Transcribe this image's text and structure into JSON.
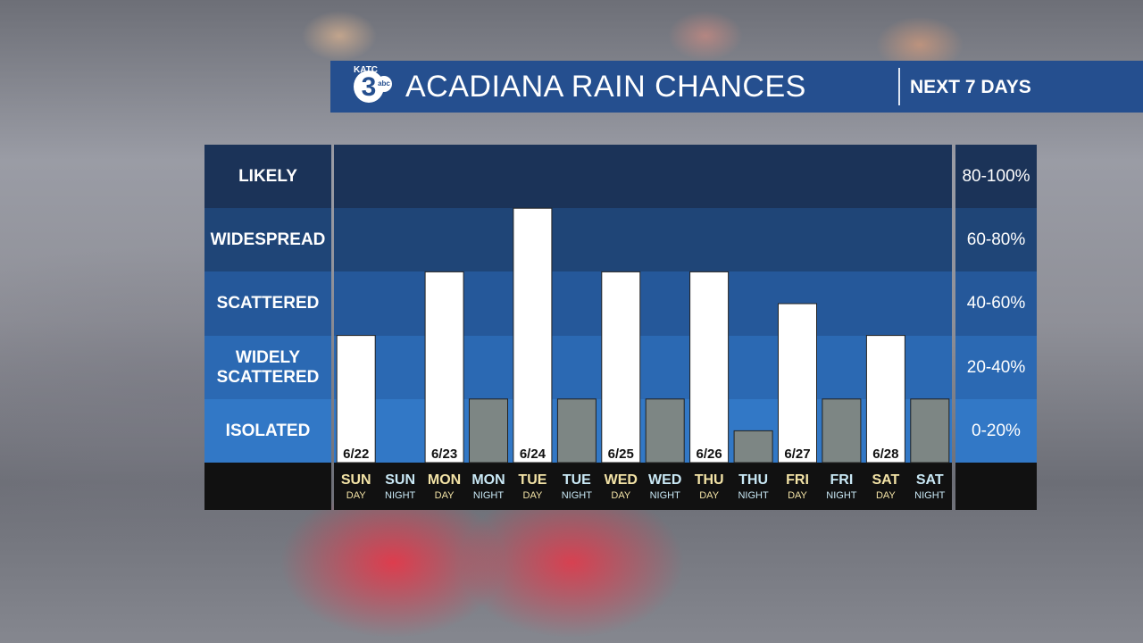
{
  "header": {
    "logo_text": "KATC",
    "logo_number": "3",
    "logo_network": "abc",
    "title": "ACADIANA RAIN CHANCES",
    "subtitle": "NEXT 7 DAYS"
  },
  "bands": [
    {
      "label": "LIKELY",
      "label2": "",
      "range": "80-100%",
      "color": "#1b3358"
    },
    {
      "label": "WIDESPREAD",
      "label2": "",
      "range": "60-80%",
      "color": "#1f4577"
    },
    {
      "label": "SCATTERED",
      "label2": "",
      "range": "40-60%",
      "color": "#25589a"
    },
    {
      "label": "WIDELY",
      "label2": "SCATTERED",
      "range": "20-40%",
      "color": "#2b69b3"
    },
    {
      "label": "ISOLATED",
      "label2": "",
      "range": "0-20%",
      "color": "#3278c6"
    }
  ],
  "chart_data": {
    "type": "bar",
    "ylim": [
      0,
      100
    ],
    "categories": [
      "SUN DAY",
      "SUN NIGHT",
      "MON DAY",
      "MON NIGHT",
      "TUE DAY",
      "TUE NIGHT",
      "WED DAY",
      "WED NIGHT",
      "THU DAY",
      "THU NIGHT",
      "FRI DAY",
      "FRI NIGHT",
      "SAT DAY",
      "SAT NIGHT"
    ],
    "periods": [
      {
        "day": "SUN",
        "part": "DAY",
        "date": "6/22",
        "value": 40,
        "kind": "day"
      },
      {
        "day": "SUN",
        "part": "NIGHT",
        "date": "",
        "value": 0,
        "kind": "night"
      },
      {
        "day": "MON",
        "part": "DAY",
        "date": "6/23",
        "value": 60,
        "kind": "day"
      },
      {
        "day": "MON",
        "part": "NIGHT",
        "date": "",
        "value": 20,
        "kind": "night"
      },
      {
        "day": "TUE",
        "part": "DAY",
        "date": "6/24",
        "value": 80,
        "kind": "day"
      },
      {
        "day": "TUE",
        "part": "NIGHT",
        "date": "",
        "value": 20,
        "kind": "night"
      },
      {
        "day": "WED",
        "part": "DAY",
        "date": "6/25",
        "value": 60,
        "kind": "day"
      },
      {
        "day": "WED",
        "part": "NIGHT",
        "date": "",
        "value": 20,
        "kind": "night"
      },
      {
        "day": "THU",
        "part": "DAY",
        "date": "6/26",
        "value": 60,
        "kind": "day"
      },
      {
        "day": "THU",
        "part": "NIGHT",
        "date": "",
        "value": 10,
        "kind": "night"
      },
      {
        "day": "FRI",
        "part": "DAY",
        "date": "6/27",
        "value": 50,
        "kind": "day"
      },
      {
        "day": "FRI",
        "part": "NIGHT",
        "date": "",
        "value": 20,
        "kind": "night"
      },
      {
        "day": "SAT",
        "part": "DAY",
        "date": "6/28",
        "value": 40,
        "kind": "day"
      },
      {
        "day": "SAT",
        "part": "NIGHT",
        "date": "",
        "value": 20,
        "kind": "night"
      }
    ],
    "colors": {
      "day_bar": "#ffffff",
      "night_bar": "#7d8684",
      "day_text": "#f3e3a6",
      "night_text": "#c9e8f5"
    }
  }
}
